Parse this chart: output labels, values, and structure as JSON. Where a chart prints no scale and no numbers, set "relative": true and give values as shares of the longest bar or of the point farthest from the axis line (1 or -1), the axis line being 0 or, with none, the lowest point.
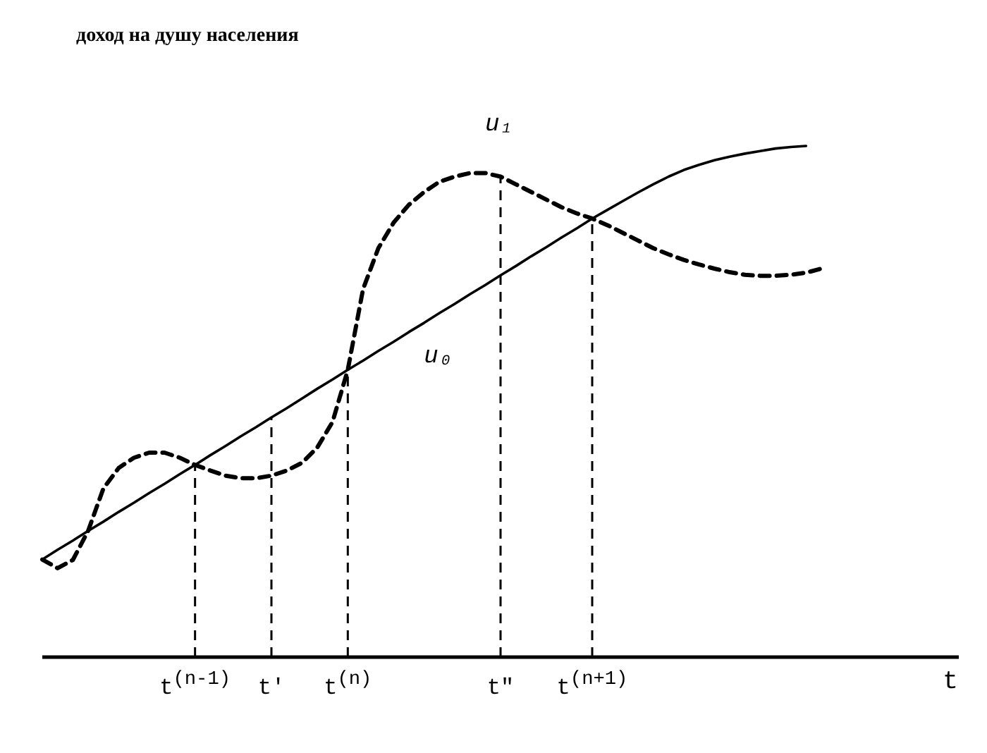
{
  "chart_data": {
    "type": "line",
    "relative": true,
    "annotations": [
      "доход на душу населения"
    ],
    "xlabel": "t",
    "legend": false,
    "grid": false,
    "marker": "none",
    "tick_labels": "x",
    "categories": [
      null,
      null,
      null,
      null,
      null,
      null,
      null,
      null,
      null,
      null,
      "t$^{(n-1)}$",
      null,
      null,
      null,
      null,
      "t'",
      null,
      null,
      null,
      null,
      "t$^{(n)}$",
      null,
      null,
      null,
      null,
      null,
      null,
      null,
      null,
      null,
      "t\"",
      null,
      null,
      null,
      null,
      null,
      "t$^{(n+1)}$",
      null,
      null,
      null,
      null,
      null,
      null,
      null,
      null,
      null,
      null,
      null,
      null,
      null,
      null,
      null,
      null,
      null,
      null,
      null,
      null,
      null,
      null,
      null,
      null
    ],
    "series": [
      {
        "name": "u₀",
        "color": "#000000",
        "line_style": "solid",
        "values": [
          0.191,
          0.21,
          0.228,
          0.247,
          0.265,
          0.284,
          0.302,
          0.321,
          0.339,
          0.358,
          0.376,
          0.395,
          0.413,
          0.432,
          0.45,
          0.469,
          0.487,
          0.506,
          0.525,
          0.543,
          0.562,
          0.58,
          0.599,
          0.617,
          0.636,
          0.654,
          0.673,
          0.691,
          0.71,
          0.728,
          0.747,
          0.765,
          0.784,
          0.802,
          0.821,
          0.839,
          0.858,
          0.875,
          0.892,
          0.909,
          0.925,
          0.94,
          0.953,
          0.963,
          0.972,
          0.979,
          0.985,
          0.99,
          0.995,
          0.998,
          1,
          null,
          null,
          null,
          null,
          null,
          null,
          null,
          null,
          null,
          null
        ]
      },
      {
        "name": "u₁",
        "color": "#000000",
        "line_style": "dashed",
        "values": [
          0.191,
          0.174,
          0.19,
          0.247,
          0.33,
          0.37,
          0.39,
          0.4,
          0.4,
          0.39,
          0.376,
          0.365,
          0.355,
          0.35,
          0.35,
          0.355,
          0.365,
          0.38,
          0.41,
          0.46,
          0.562,
          0.72,
          0.8,
          0.85,
          0.885,
          0.91,
          0.93,
          0.94,
          0.947,
          0.947,
          0.94,
          0.925,
          0.91,
          0.895,
          0.88,
          0.868,
          0.858,
          0.845,
          0.83,
          0.815,
          0.8,
          0.788,
          0.777,
          0.768,
          0.76,
          0.753,
          0.748,
          0.746,
          0.746,
          0.748,
          0.752,
          0.76,
          null,
          null,
          null,
          null,
          null,
          null,
          null,
          null,
          null
        ]
      }
    ],
    "ref_lines": [
      {
        "axis": "x",
        "value": "t$^{(n-1)}$",
        "line_style": "dashed"
      },
      {
        "axis": "x",
        "value": "t'",
        "line_style": "dashed"
      },
      {
        "axis": "x",
        "value": "t$^{(n)}$",
        "line_style": "dashed"
      },
      {
        "axis": "x",
        "value": "t\"",
        "line_style": "dashed"
      },
      {
        "axis": "x",
        "value": "t$^{(n+1)}$",
        "line_style": "dashed"
      }
    ]
  }
}
